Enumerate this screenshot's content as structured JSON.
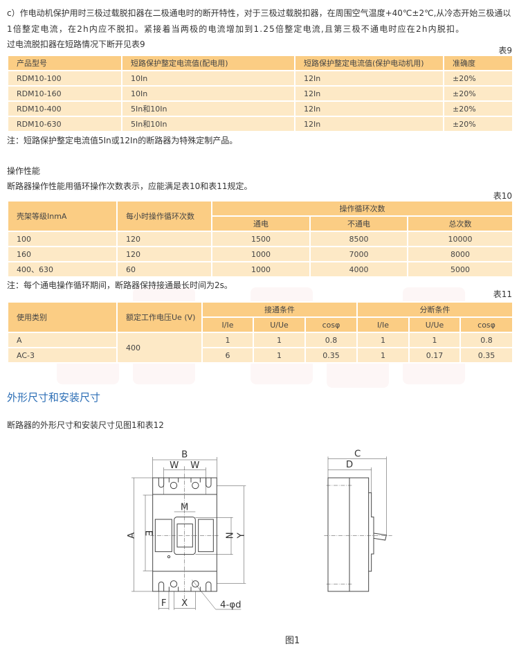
{
  "intro": {
    "line1": "c）作电动机保护用时三极过载脱扣器在二极通电时的断开特性，对于三极过载脱扣器，在周围空气温度+40℃±2℃,从冷态开始三极通以",
    "line2": "1倍整定电流，在2h内应不脱扣。紧接着当两极的电流增加到1.25倍整定电流,且第三极不通电时应在2h内脱扣。",
    "line3": "过电流脱扣器在短路情况下断开见表9"
  },
  "table9": {
    "caption": "表9",
    "headers": [
      "产品型号",
      "短路保护整定电流值(配电用)",
      "短路保护整定电流值(保护电动机用)",
      "准确度"
    ],
    "rows": [
      [
        "RDM10-100",
        "10In",
        "12In",
        "±20%"
      ],
      [
        "RDM10-160",
        "10In",
        "12In",
        "±20%"
      ],
      [
        "RDM10-400",
        "5In和10In",
        "12In",
        "±20%"
      ],
      [
        "RDM10-630",
        "5In和10In",
        "12In",
        "±20%"
      ]
    ],
    "note": "注：短路保护整定电流值5In或12In的断路器为特殊定制产品。"
  },
  "operation": {
    "title": "操作性能",
    "desc": "断路器操作性能用循环操作次数表示，应能满足表10和表11规定。"
  },
  "table10": {
    "caption": "表10",
    "headers": [
      "壳架等级InmA",
      "每小时操作循环次数",
      "操作循环次数"
    ],
    "subheaders": [
      "通电",
      "不通电",
      "总次数"
    ],
    "rows": [
      [
        "100",
        "120",
        "1500",
        "8500",
        "10000"
      ],
      [
        "160",
        "120",
        "1000",
        "7000",
        "8000"
      ],
      [
        "400、630",
        "60",
        "1000",
        "4000",
        "5000"
      ]
    ],
    "note": "注：每个通电操作循环期间，断路器保持接通最长时间为2s。"
  },
  "table11": {
    "caption": "表11",
    "headers": [
      "使用类别",
      "额定工作电压Ue (V)",
      "接通条件",
      "分断条件"
    ],
    "subheaders": [
      "I/Ie",
      "U/Ue",
      "cosφ",
      "I/Ie",
      "U/Ue",
      "cosφ"
    ],
    "voltage": "400",
    "rows": [
      [
        "A",
        "1",
        "1",
        "0.8",
        "1",
        "1",
        "0.8"
      ],
      [
        "AC-3",
        "6",
        "1",
        "0.35",
        "1",
        "0.17",
        "0.35"
      ]
    ]
  },
  "dimensions": {
    "title": "外形尺寸和安装尺寸",
    "desc": "断路器的外形尺寸和安装尺寸见图1和表12",
    "figure_caption": "图1",
    "labels": {
      "A": "A",
      "B": "B",
      "C": "C",
      "D": "D",
      "E": "E",
      "F": "F",
      "M": "M",
      "N": "N",
      "W": "W",
      "X": "X",
      "Y": "Y",
      "hole": "4-φd"
    }
  },
  "colors": {
    "header": "#fbcd84",
    "row": "#fde9c6",
    "section_title": "#2a6db5"
  }
}
